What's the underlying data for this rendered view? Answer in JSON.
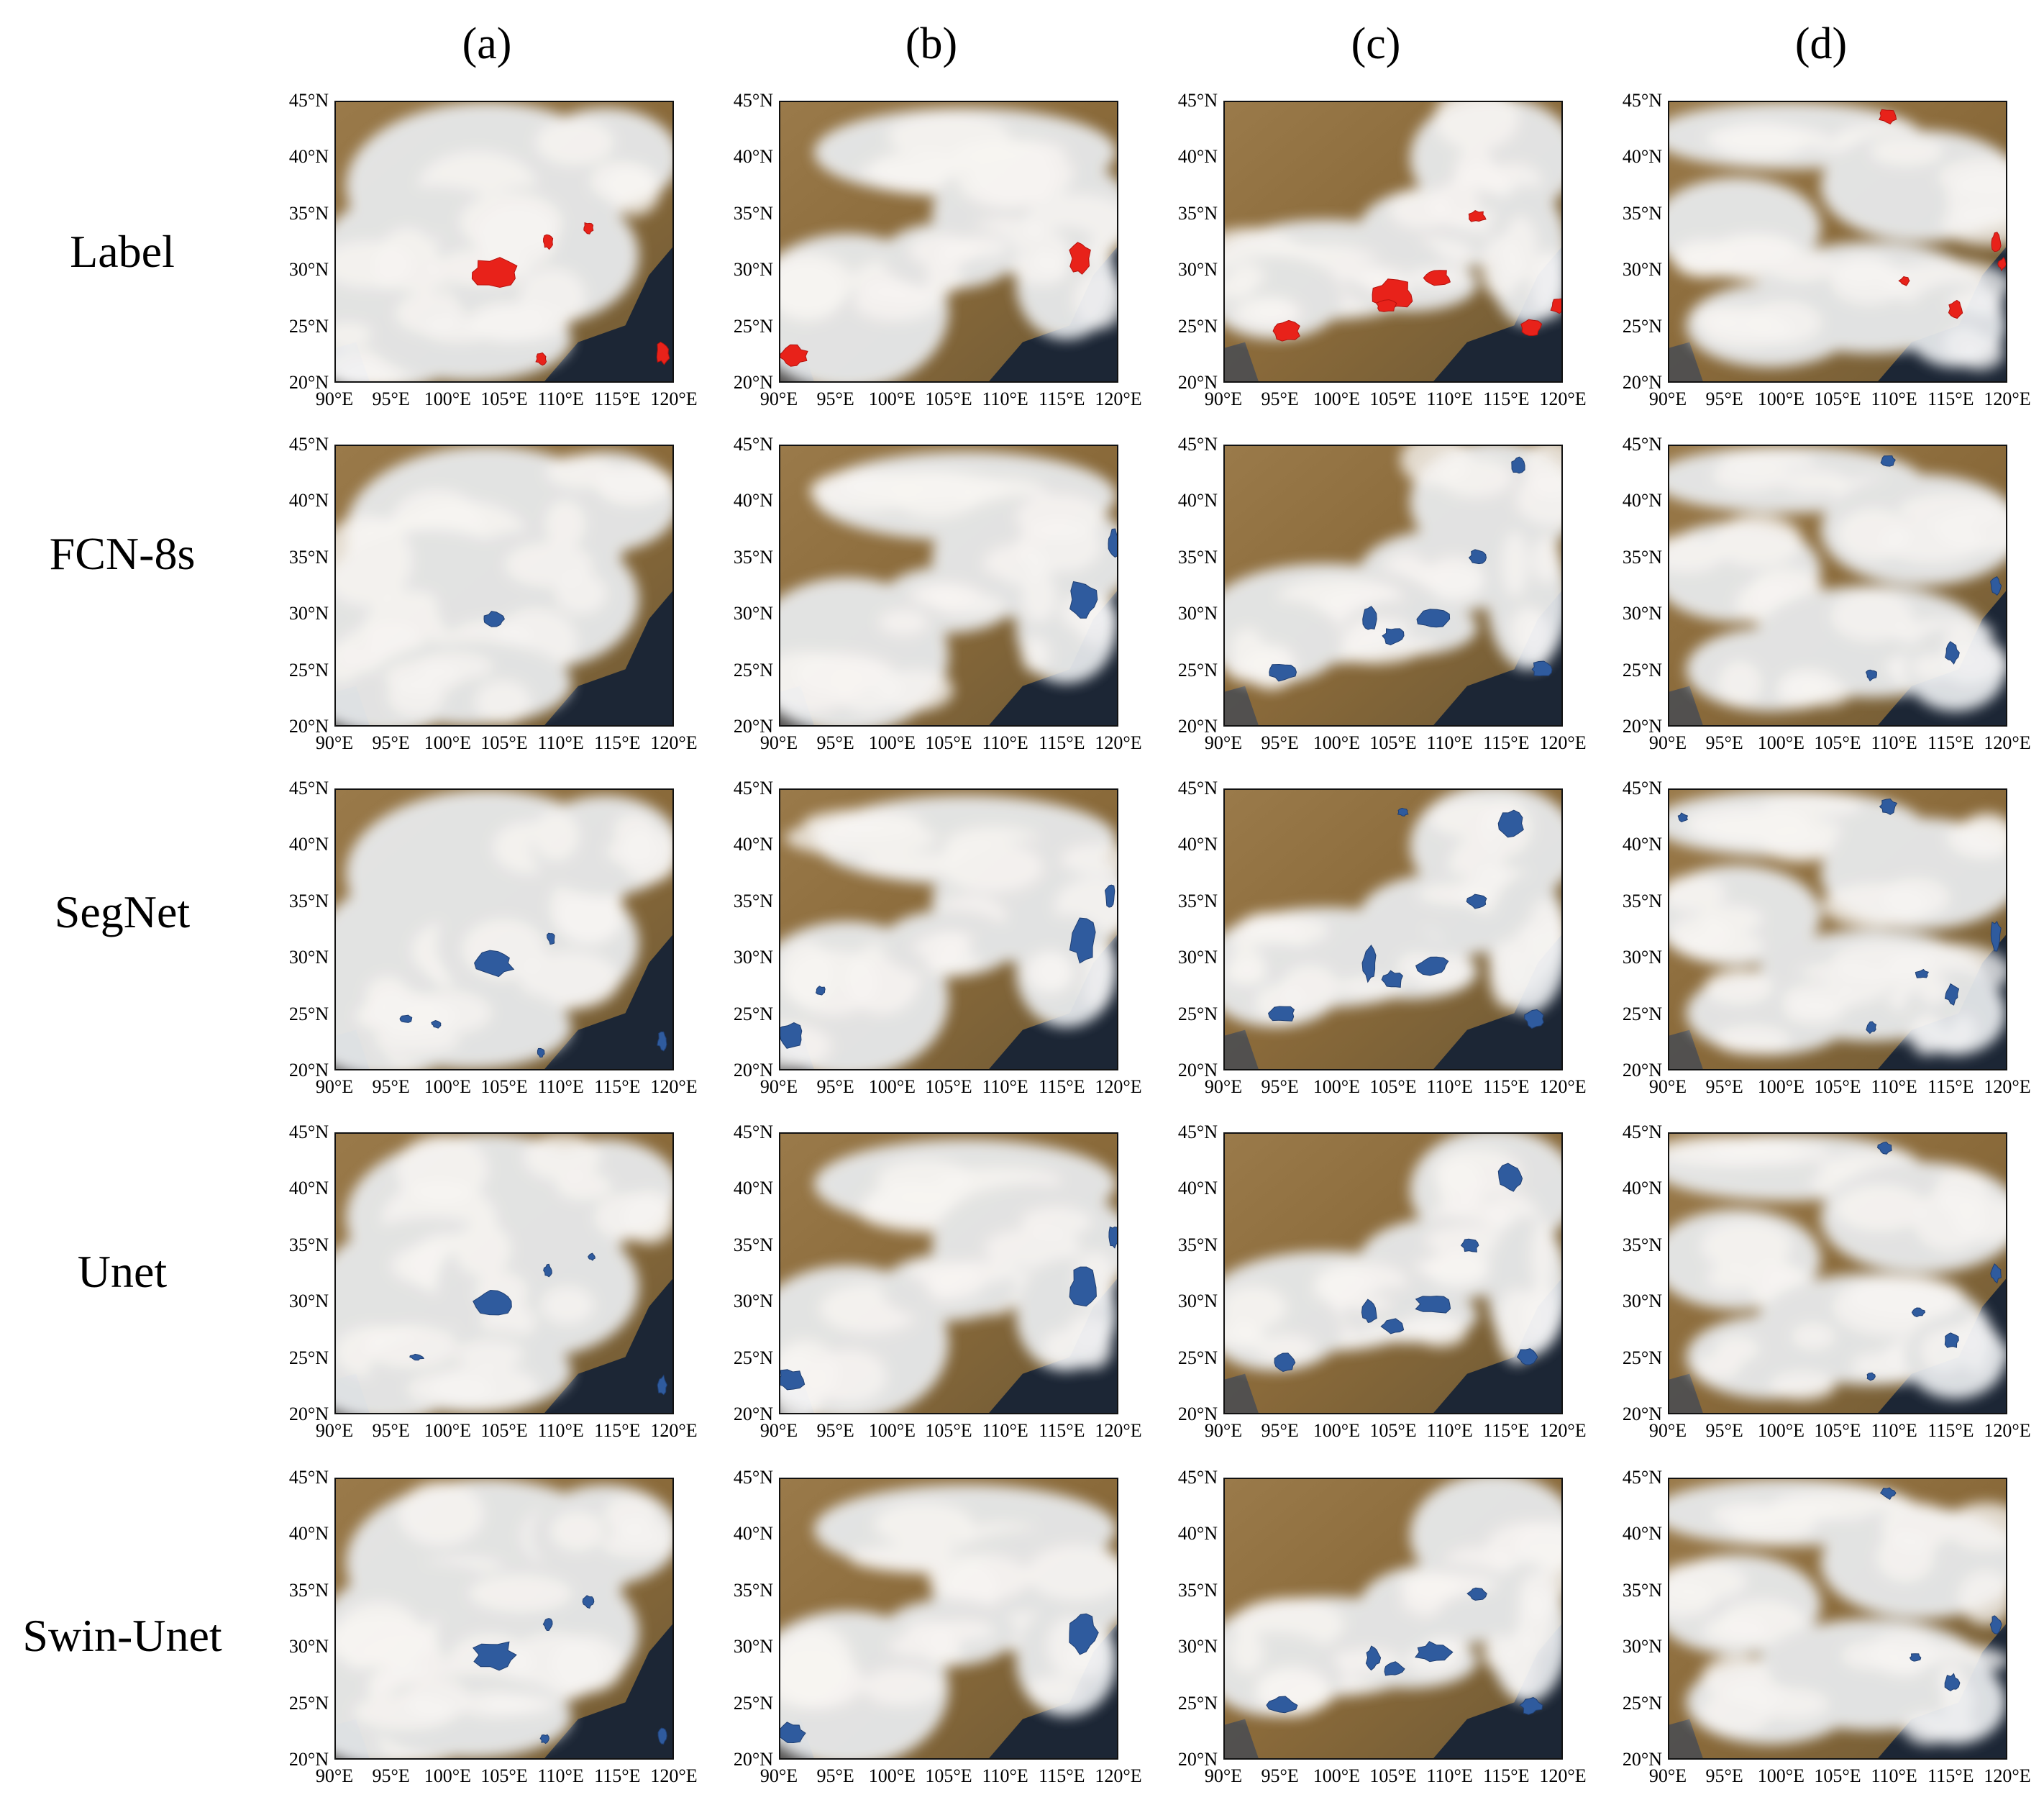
{
  "figure": {
    "columns": [
      "(a)",
      "(b)",
      "(c)",
      "(d)"
    ],
    "rows": [
      "Label",
      "FCN-8s",
      "SegNet",
      "Unet",
      "Swin-Unet"
    ],
    "lat_ticks": [
      "45°N",
      "40°N",
      "35°N",
      "30°N",
      "25°N",
      "20°N"
    ],
    "lon_ticks": [
      "90°E",
      "95°E",
      "100°E",
      "105°E",
      "110°E",
      "115°E",
      "120°E"
    ],
    "lat_range": [
      20,
      45
    ],
    "lon_range": [
      90,
      120
    ],
    "colors": {
      "label_mask": "#e8221a",
      "prediction_mask": "#2f5b9e",
      "land": "#8a6a3a",
      "cloud": "#e9ecef",
      "ocean": "#1c2635"
    }
  }
}
